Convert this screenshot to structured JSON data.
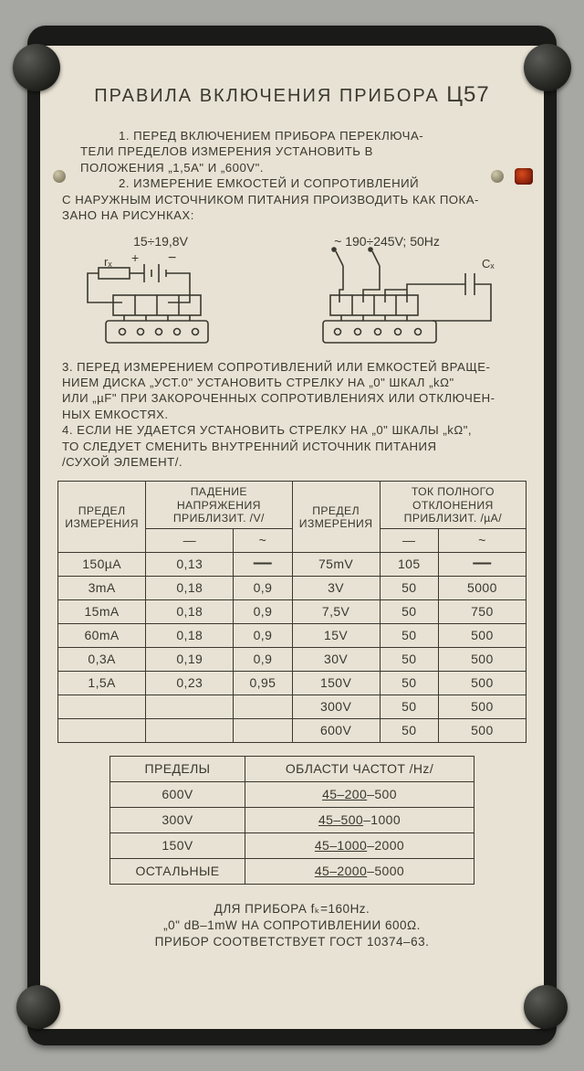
{
  "title_main": "ПРАВИЛА ВКЛЮЧЕНИЯ ПРИБОРА",
  "title_model": "Ц57",
  "p1": "1. ПЕРЕД ВКЛЮЧЕНИЕМ ПРИБОРА ПЕРЕКЛЮЧА-\nТЕЛИ ПРЕДЕЛОВ ИЗМЕРЕНИЯ УСТАНОВИТЬ В\nПОЛОЖЕНИЯ „1,5А\" И „600V\".",
  "p2a": "2. ИЗМЕРЕНИЕ ЕМКОСТЕЙ И СОПРОТИВЛЕНИЙ",
  "p2b": "С НАРУЖНЫМ ИСТОЧНИКОМ ПИТАНИЯ ПРОИЗВОДИТЬ КАК ПОКА-\nЗАНО НА РИСУНКАХ:",
  "diag1_label": "15÷19,8V",
  "diag1_rx": "rₓ",
  "diag2_label": "~ 190÷245V; 50Hz",
  "diag2_cx": "Cₓ",
  "p3": "3. ПЕРЕД ИЗМЕРЕНИЕМ СОПРОТИВЛЕНИЙ ИЛИ ЕМКОСТЕЙ ВРАЩЕ-\nНИЕМ ДИСКА „УСТ.0\" УСТАНОВИТЬ СТРЕЛКУ НА „0\" ШКАЛ „kΩ\"\nИЛИ „µF\" ПРИ ЗАКОРОЧЕННЫХ СОПРОТИВЛЕНИЯХ ИЛИ ОТКЛЮЧЕН-\nНЫХ ЕМКОСТЯХ.",
  "p4": "4. ЕСЛИ НЕ УДАЕТСЯ УСТАНОВИТЬ СТРЕЛКУ НА „0\" ШКАЛЫ „kΩ\",\nТО СЛЕДУЕТ СМЕНИТЬ ВНУТРЕННИЙ ИСТОЧНИК ПИТАНИЯ\n/СУХОЙ ЭЛЕМЕНТ/.",
  "t1_h_range": "ПРЕДЕЛ\nИЗМЕРЕНИЯ",
  "t1_h_drop": "ПАДЕНИЕ\nНАПРЯЖЕНИЯ\nПРИБЛИЗИТ. /V/",
  "t1_h_defl": "ТОК ПОЛНОГО\nОТКЛОНЕНИЯ\nПРИБЛИЗИТ. /µA/",
  "t1_dc": "—",
  "t1_ac": "~",
  "t1_rows": [
    [
      "150µA",
      "0,13",
      "—",
      "75mV",
      "105",
      "—"
    ],
    [
      "3mA",
      "0,18",
      "0,9",
      "3V",
      "50",
      "5000"
    ],
    [
      "15mA",
      "0,18",
      "0,9",
      "7,5V",
      "50",
      "750"
    ],
    [
      "60mA",
      "0,18",
      "0,9",
      "15V",
      "50",
      "500"
    ],
    [
      "0,3A",
      "0,19",
      "0,9",
      "30V",
      "50",
      "500"
    ],
    [
      "1,5A",
      "0,23",
      "0,95",
      "150V",
      "50",
      "500"
    ],
    [
      "",
      "",
      "",
      "300V",
      "50",
      "500"
    ],
    [
      "",
      "",
      "",
      "600V",
      "50",
      "500"
    ]
  ],
  "t2_h1": "ПРЕДЕЛЫ",
  "t2_h2": "ОБЛАСТИ ЧАСТОТ /Hz/",
  "t2_rows": [
    {
      "range": "600V",
      "a": "45–200",
      "b": "–500"
    },
    {
      "range": "300V",
      "a": "45–500",
      "b": "–1000"
    },
    {
      "range": "150V",
      "a": "45–1000",
      "b": "–2000"
    },
    {
      "range": "ОСТАЛЬНЫЕ",
      "a": "45–2000",
      "b": "–5000"
    }
  ],
  "f1a": "ДЛЯ ПРИБОРА ",
  "f1b": "fₖ=160Hz.",
  "f2": "„0\" dB–1mW НА СОПРОТИВЛЕНИИ 600Ω.",
  "f3": "ПРИБОР СООТВЕТСТВУЕТ ГОСТ 10374–63.",
  "colors": {
    "panel": "#e7e2d3",
    "ink": "#3a382f",
    "case": "#1a1a18",
    "background": "#a7a7a3",
    "led": "#d84a1c"
  }
}
